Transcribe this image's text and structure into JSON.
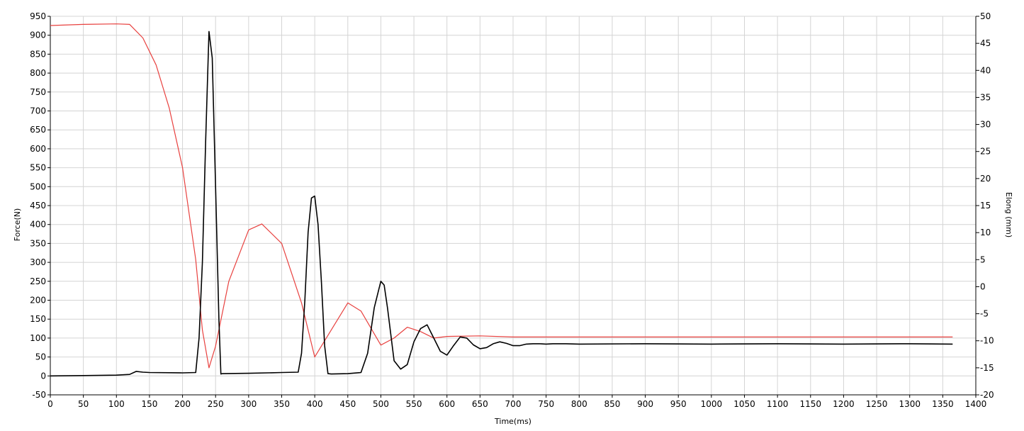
{
  "chart_data": {
    "type": "line",
    "title": "",
    "xlabel": "Time(ms)",
    "ylabel_left": "Force(N)",
    "ylabel_right": "Elong (mm)",
    "xlim": [
      0,
      1400
    ],
    "ylim_left": [
      -50,
      950
    ],
    "ylim_right": [
      -20,
      50
    ],
    "x_ticks": [
      0,
      50,
      100,
      150,
      200,
      250,
      300,
      350,
      400,
      450,
      500,
      550,
      600,
      650,
      700,
      750,
      800,
      850,
      900,
      950,
      1000,
      1050,
      1100,
      1150,
      1200,
      1250,
      1300,
      1350,
      1400
    ],
    "y_ticks_left": [
      -50,
      0,
      50,
      100,
      150,
      200,
      250,
      300,
      350,
      400,
      450,
      500,
      550,
      600,
      650,
      700,
      750,
      800,
      850,
      900,
      950
    ],
    "y_ticks_right": [
      -20,
      -15,
      -10,
      -5,
      0,
      5,
      10,
      15,
      20,
      25,
      30,
      35,
      40,
      45,
      50
    ],
    "grid": true,
    "colors": {
      "force": "#000000",
      "elong": "#e8413f",
      "grid": "#d4d4d4"
    },
    "series": [
      {
        "axis": "left",
        "x": [
          0,
          50,
          100,
          120,
          130,
          140,
          150,
          200,
          220,
          225,
          230,
          235,
          240,
          245,
          250,
          255,
          258,
          260,
          300,
          350,
          375,
          380,
          385,
          390,
          395,
          400,
          405,
          410,
          415,
          420,
          425,
          450,
          470,
          480,
          490,
          500,
          505,
          510,
          520,
          530,
          540,
          550,
          560,
          570,
          580,
          590,
          600,
          610,
          620,
          630,
          640,
          650,
          660,
          670,
          680,
          690,
          700,
          710,
          720,
          730,
          740,
          750,
          760,
          780,
          800,
          900,
          1000,
          1100,
          1200,
          1300,
          1365
        ],
        "values": [
          0,
          1,
          2,
          4,
          12,
          10,
          9,
          8,
          9,
          100,
          300,
          620,
          910,
          840,
          500,
          150,
          5,
          6,
          7,
          9,
          10,
          60,
          200,
          380,
          470,
          475,
          400,
          250,
          80,
          6,
          5,
          6,
          9,
          60,
          180,
          250,
          240,
          180,
          40,
          18,
          30,
          90,
          125,
          135,
          100,
          65,
          55,
          80,
          103,
          100,
          82,
          72,
          75,
          85,
          90,
          86,
          80,
          80,
          84,
          85,
          85,
          84,
          85,
          85,
          84,
          85,
          84,
          85,
          84,
          85,
          84
        ]
      },
      {
        "axis": "right",
        "x": [
          0,
          50,
          100,
          120,
          140,
          160,
          180,
          200,
          220,
          230,
          240,
          250,
          270,
          300,
          320,
          350,
          380,
          400,
          420,
          450,
          470,
          500,
          520,
          540,
          560,
          580,
          600,
          650,
          700,
          800,
          1000,
          1200,
          1365
        ],
        "values": [
          48.3,
          48.5,
          48.6,
          48.5,
          46,
          41,
          33,
          22,
          5,
          -8,
          -15,
          -11,
          1,
          10.5,
          11.6,
          8,
          -3,
          -13,
          -9,
          -3,
          -4.5,
          -10.8,
          -9.5,
          -7.5,
          -8.3,
          -9.5,
          -9.2,
          -9.1,
          -9.3,
          -9.3,
          -9.3,
          -9.3,
          -9.3
        ]
      }
    ]
  }
}
